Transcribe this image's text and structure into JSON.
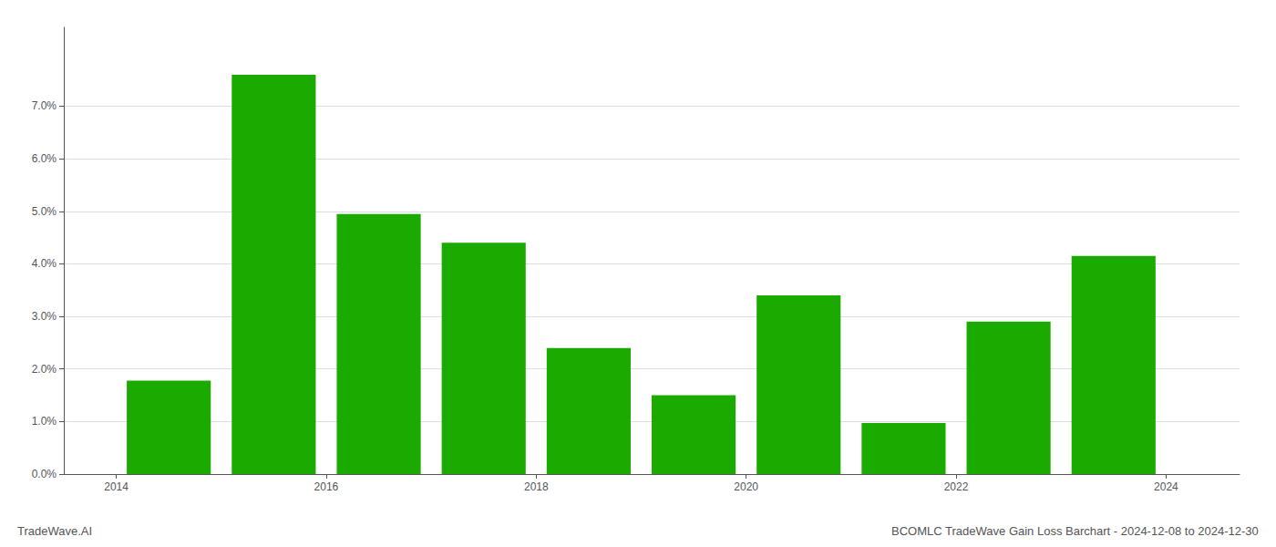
{
  "chart_data": {
    "type": "bar",
    "title": "BCOMLC TradeWave Gain Loss Barchart - 2024-12-08 to 2024-12-30",
    "annotations": [
      "TradeWave.AI"
    ],
    "x": [
      2014,
      2015,
      2016,
      2017,
      2018,
      2019,
      2020,
      2021,
      2022,
      2023
    ],
    "values": [
      0.0178,
      0.076,
      0.0495,
      0.044,
      0.024,
      0.015,
      0.034,
      0.0097,
      0.029,
      0.0415
    ],
    "color": "#1aaa00",
    "xlim": [
      2013.0,
      2024.2
    ],
    "xticks": [
      {
        "value": 2013.5,
        "label": "2014"
      },
      {
        "value": 2015.5,
        "label": "2016"
      },
      {
        "value": 2017.5,
        "label": "2018"
      },
      {
        "value": 2019.5,
        "label": "2020"
      },
      {
        "value": 2021.5,
        "label": "2022"
      },
      {
        "value": 2023.5,
        "label": "2024"
      }
    ],
    "ylim": [
      0,
      0.085
    ],
    "yticks": [
      {
        "value": 0.0,
        "label": "0.0%"
      },
      {
        "value": 0.01,
        "label": "1.0%"
      },
      {
        "value": 0.02,
        "label": "2.0%"
      },
      {
        "value": 0.03,
        "label": "3.0%"
      },
      {
        "value": 0.04,
        "label": "4.0%"
      },
      {
        "value": 0.05,
        "label": "5.0%"
      },
      {
        "value": 0.06,
        "label": "6.0%"
      },
      {
        "value": 0.07,
        "label": "7.0%"
      }
    ],
    "grid": true
  }
}
